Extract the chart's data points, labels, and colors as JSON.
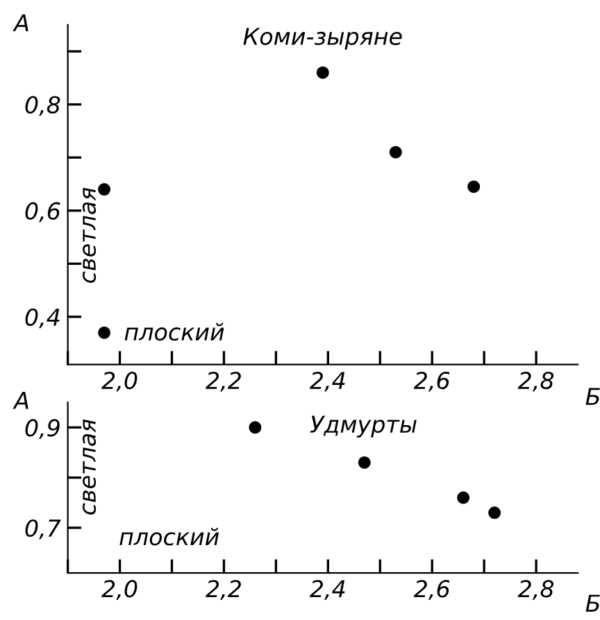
{
  "chart_data": [
    {
      "type": "scatter",
      "ylabel": "A",
      "xlabel": "Б",
      "annotations": [
        "Коми-зыряне",
        "светлая",
        "плоский"
      ],
      "marker": "circle",
      "grid": false,
      "legend": false,
      "x": [
        1.97,
        2.39,
        2.53,
        2.68,
        1.97
      ],
      "series": [
        {
          "color": "#000000",
          "values": [
            0.64,
            0.86,
            0.71,
            0.645,
            0.37
          ]
        }
      ],
      "xlim": [
        1.9,
        2.88
      ],
      "ylim": [
        0.31,
        0.95
      ],
      "xticks": [
        {
          "value": 1.9,
          "label": null
        },
        {
          "value": 2.0,
          "label": "2,0"
        },
        {
          "value": 2.1,
          "label": null
        },
        {
          "value": 2.2,
          "label": "2,2"
        },
        {
          "value": 2.3,
          "label": null
        },
        {
          "value": 2.4,
          "label": "2,4"
        },
        {
          "value": 2.5,
          "label": null
        },
        {
          "value": 2.6,
          "label": "2,6"
        },
        {
          "value": 2.7,
          "label": null
        },
        {
          "value": 2.8,
          "label": "2,8"
        }
      ],
      "yticks": [
        {
          "value": 0.4,
          "label": "0,4"
        },
        {
          "value": 0.5,
          "label": null
        },
        {
          "value": 0.6,
          "label": "0,6"
        },
        {
          "value": 0.7,
          "label": null
        },
        {
          "value": 0.8,
          "label": "0,8"
        },
        {
          "value": 0.9,
          "label": null
        }
      ]
    },
    {
      "type": "scatter",
      "ylabel": "A",
      "xlabel": "Б",
      "annotations": [
        "Удмурты",
        "светлая",
        "плоский"
      ],
      "marker": "circle",
      "grid": false,
      "legend": false,
      "x": [
        2.26,
        2.47,
        2.66,
        2.72
      ],
      "series": [
        {
          "color": "#000000",
          "values": [
            0.9,
            0.83,
            0.76,
            0.73
          ]
        }
      ],
      "xlim": [
        1.9,
        2.88
      ],
      "ylim": [
        0.61,
        0.95
      ],
      "xticks": [
        {
          "value": 1.9,
          "label": null
        },
        {
          "value": 2.0,
          "label": "2,0"
        },
        {
          "value": 2.1,
          "label": null
        },
        {
          "value": 2.2,
          "label": "2,2"
        },
        {
          "value": 2.3,
          "label": null
        },
        {
          "value": 2.4,
          "label": "2,4"
        },
        {
          "value": 2.5,
          "label": null
        },
        {
          "value": 2.6,
          "label": "2,6"
        },
        {
          "value": 2.7,
          "label": null
        },
        {
          "value": 2.8,
          "label": "2,8"
        }
      ],
      "yticks": [
        {
          "value": 0.7,
          "label": "0,7"
        },
        {
          "value": 0.8,
          "label": null
        },
        {
          "value": 0.9,
          "label": "0,9"
        }
      ]
    }
  ]
}
